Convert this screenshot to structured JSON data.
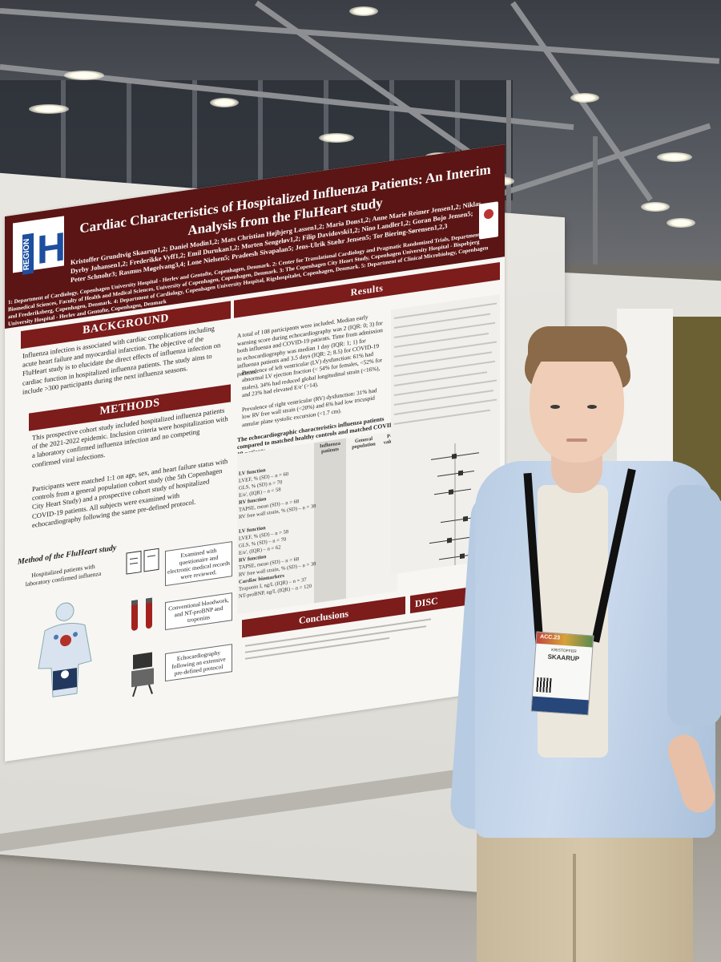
{
  "poster": {
    "logo": "REGION H",
    "title": "Cardiac Characteristics of Hospitalized Influenza Patients: An Interim Analysis from the FluHeart study",
    "authors": "Kristoffer Grundtvig Skaarup1,2; Daniel Modin1,2; Mats Christian Højbjerg Lassen1,2; Maria Dons1,2; Anne Marie Reimer Jensen1,2; Niklas Dyrby Johansen1,2; Frederikke Vyff1,2; Emil Durukan1,2; Morten Sengeløv1,2; Filip Davidovski1,2; Nino Landler1,2; Goran Bojo Jensen5; Peter Schnohr3; Rasmus Møgelvang3,4; Lone Nielsen5; Pradeesh Sivapalan5; Jens-Ulrik Stæhr Jensen5; Tor Biering-Sørensen1,2,3",
    "affiliations": "1: Department of Cardiology, Copenhagen University Hospital - Herlev and Gentofte, Copenhagen, Denmark. 2: Center for Translational Cardiology and Pragmatic Randomized Trials, Department of Biomedical Sciences, Faculty of Health and Medical Sciences, University of Copenhagen, Copenhagen, Denmark. 3: The Copenhagen City Heart Study, Copenhagen University Hospital - Bispebjerg and Frederiksberg, Copenhagen, Denmark. 4: Department of Cardiology, Copenhagen University Hospital, Rigshospitalet, Copenhagen, Denmark. 5: Department of Clinical Microbiology, Copenhagen University Hospital - Herlev and Gentofte, Copenhagen, Denmark",
    "background": {
      "heading": "BACKGROUND",
      "text": "Influenza infection is associated with cardiac complications including acute heart failure and myocardial infarction. The objective of the FluHeart study is to elucidate the direct effects of influenza infection on cardiac function in hospitalized influenza patients. The study aims to include >300 participants during the next influenza seasons."
    },
    "methods": {
      "heading": "METHODS",
      "text1": "This prospective cohort study included hospitalized influenza patients of the 2021-2022 epidemic. Inclusion criteria were hospitalization with a laboratory confirmed influenza infection and no competing confirmed viral infections.",
      "text2": "Participants were matched 1:1 on age, sex, and heart failure status with controls from a general population cohort study (the 5th Copenhagen City Heart Study) and a prospective cohort study of hospitalized COVID-19 patients. All subjects were examined with echocardiography following the same pre-defined protocol.",
      "figure_title": "Method of the FluHeart study",
      "patients_label": "Hospitalized patients with laboratory confirmed influenza",
      "steps": [
        "Examined with questionaire and electronic medical records were reviewed.",
        "Conventional bloodwork, and NT-proBNP and troponins",
        "Echocardiography following an extensive pre-defined protocol"
      ]
    },
    "results": {
      "heading": "Results",
      "text": "A total of 108 participants were included. Median early warning score during echocardiography was 2 (IQR: 0; 3) for both influenza and COVID-19 patients. Time from admission to echocardiography was median 1 day (IQR: 1; 1) for influenza patients and 3.5 days (IQR: 2; 8.5) for COVID-19 patients.",
      "bullet1": "Prevalence of left ventricular (LV) dysfunction: 61% had abnormal LV ejection fraction (< 54% for females, <52% for males), 34% had reduced global longitudinal strain (<16%), and 23% had elevated E/e' (>14).",
      "bullet2": "Prevalence of right ventricular (RV) dysfunction: 31% had low RV free wall strain (<20%) and 6% had low tricuspid annular plane systolic excursion (<1.7 cm).",
      "table_title": "The echocardiographic characteristics influenza patients compared to matched healthy controls and matched COVID-19 patients.",
      "table_headers": [
        "Influenza patients",
        "General population",
        "P-value"
      ],
      "table_rows": [
        "LV function",
        "LVEF, % (SD) – n = 60",
        "GLS, % (SD) n = 70",
        "E/e', (IQR) – n = 58",
        "RV function",
        "TAPSE, mean (SD) – n = 68",
        "RV free wall strain, % (SD) – n = 38",
        "",
        "LV function",
        "LVEF, % (SD) – n = 58",
        "GLS, % (SD) – n = 70",
        "E/e', (IQR) – n = 62",
        "RV function",
        "TAPSE, mean (SD) – n = 68",
        "RV free wall strain, % (SD) – n = 38",
        "Cardiac biomarkers",
        "Troponin I, ng/L (IQR) – n = 37",
        "NT-proBNP, ng/L (IQR) – n = 120"
      ]
    },
    "conclusions": {
      "heading": "Conclusions"
    },
    "discussion": {
      "heading": "DISC"
    }
  },
  "badge": {
    "event": "ACC.23",
    "first_name": "KRISTOFFER",
    "last_name": "SKAARUP"
  },
  "colors": {
    "poster_header": "#5a1514",
    "section_bar": "#7c1c1b",
    "shirt": "#c3d4ea",
    "pants": "#cfbfa2"
  }
}
